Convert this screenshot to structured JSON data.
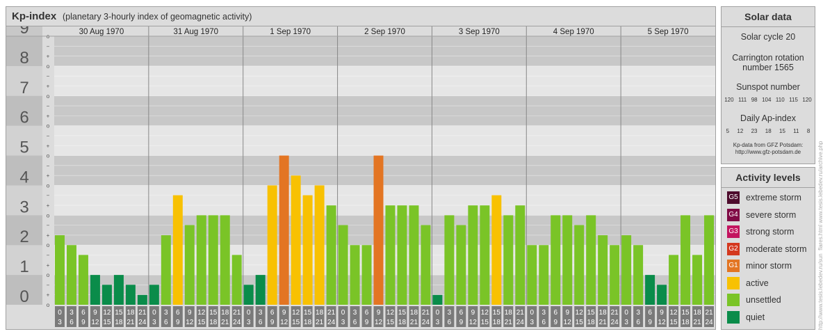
{
  "header": {
    "title": "Kp-index",
    "subtitle": "(planetary 3-hourly index of geomagnetic activity)"
  },
  "chart_data": {
    "type": "bar",
    "ylim": [
      0,
      9
    ],
    "y_ticks": [
      "0",
      "1",
      "2",
      "3",
      "4",
      "5",
      "6",
      "7",
      "8",
      "9"
    ],
    "minor_tick_labels": [
      "o",
      "+",
      "−"
    ],
    "days": [
      "30 Aug 1970",
      "31 Aug 1970",
      "1 Sep 1970",
      "2 Sep 1970",
      "3 Sep 1970",
      "4 Sep 1970",
      "5 Sep 1970"
    ],
    "interval_start": [
      "0",
      "3",
      "6",
      "9",
      "12",
      "15",
      "18",
      "21"
    ],
    "interval_end": [
      "3",
      "6",
      "9",
      "12",
      "15",
      "18",
      "21",
      "24"
    ],
    "values": [
      [
        2.33,
        2.0,
        1.67,
        1.0,
        0.67,
        1.0,
        0.67,
        0.33
      ],
      [
        0.67,
        2.33,
        3.67,
        2.67,
        3.0,
        3.0,
        3.0,
        1.67
      ],
      [
        0.67,
        1.0,
        4.0,
        5.0,
        4.33,
        3.67,
        4.0,
        3.33
      ],
      [
        2.67,
        2.0,
        2.0,
        5.0,
        3.33,
        3.33,
        3.33,
        2.67
      ],
      [
        0.33,
        3.0,
        2.67,
        3.33,
        3.33,
        3.67,
        3.0,
        3.33
      ],
      [
        2.0,
        2.0,
        3.0,
        3.0,
        2.67,
        3.0,
        2.33,
        2.0
      ],
      [
        2.33,
        2.0,
        1.0,
        0.67,
        1.67,
        3.0,
        1.67,
        3.0
      ]
    ]
  },
  "solar_data": {
    "title": "Solar data",
    "solar_cycle": "Solar cycle 20",
    "carrington_line1": "Carrington rotation",
    "carrington_line2": "number 1565",
    "sunspot_title": "Sunspot number",
    "sunspot_values": [
      "120",
      "111",
      "98",
      "104",
      "110",
      "115",
      "120"
    ],
    "ap_title": "Daily Ap-index",
    "ap_values": [
      "5",
      "12",
      "23",
      "18",
      "15",
      "11",
      "8"
    ],
    "source_line1": "Kp-data from GFZ Potsdam:",
    "source_line2": "http://www.gfz-potsdam.de"
  },
  "activity_levels": {
    "title": "Activity levels",
    "items": [
      {
        "code": "G5",
        "label": "extreme storm",
        "color": "#4d0b2c"
      },
      {
        "code": "G4",
        "label": "severe storm",
        "color": "#800a45"
      },
      {
        "code": "G3",
        "label": "strong storm",
        "color": "#c3145f"
      },
      {
        "code": "G2",
        "label": "moderate storm",
        "color": "#d4381e"
      },
      {
        "code": "G1",
        "label": "minor storm",
        "color": "#e37523"
      },
      {
        "code": "",
        "label": "active",
        "color": "#f8c102"
      },
      {
        "code": "",
        "label": "unsettled",
        "color": "#7ac427"
      },
      {
        "code": "",
        "label": "quiet",
        "color": "#0a8c4a"
      }
    ]
  },
  "watermark": "http://www.tesis.lebedev.ru/sun_flares.html   www.tesis.lebedev.ru/archive.php"
}
